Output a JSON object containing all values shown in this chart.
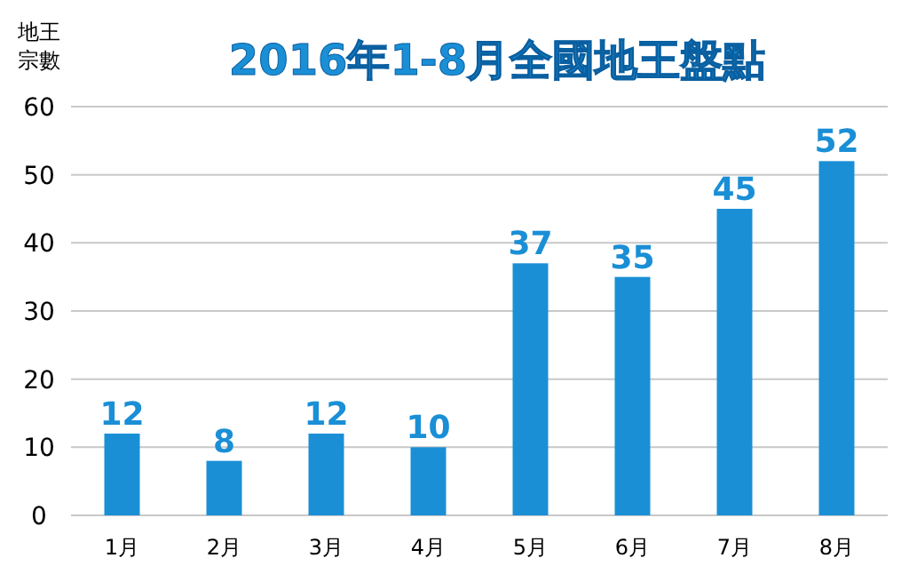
{
  "chart_data": {
    "type": "bar",
    "title": "2016年1-8月全國地王盤點",
    "ylabel": "地王宗數",
    "categories": [
      "1月",
      "2月",
      "3月",
      "4月",
      "5月",
      "6月",
      "7月",
      "8月"
    ],
    "values": [
      12,
      8,
      12,
      10,
      37,
      35,
      45,
      52
    ],
    "color": "#1a8fd6",
    "ylim": [
      0,
      60
    ],
    "yticks": [
      0,
      10,
      20,
      30,
      40,
      50,
      60
    ],
    "grid": "y",
    "data_labels": true
  }
}
